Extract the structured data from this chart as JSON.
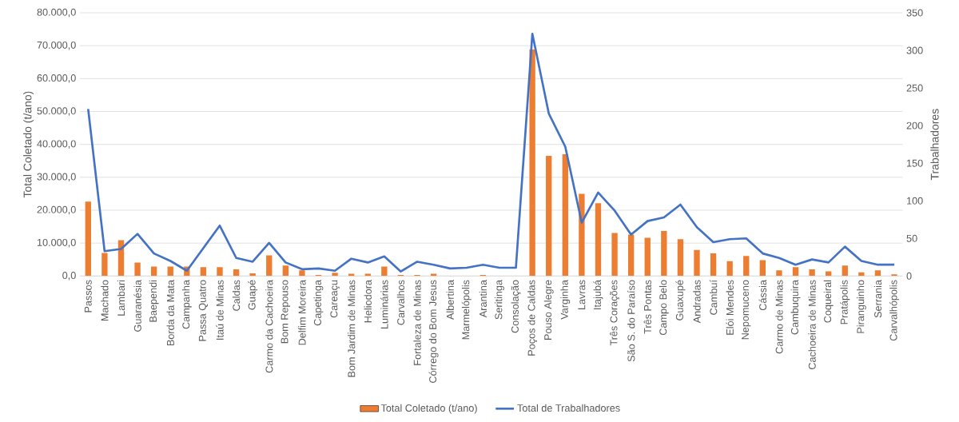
{
  "chart_data": {
    "type": "bar",
    "ylabel": "Total Coletado (t/ano)",
    "y2label": "Trabalhadores",
    "categories": [
      "Passos",
      "Machado",
      "Lambari",
      "Guaranésia",
      "Baependi",
      "Borda da Mata",
      "Campanha",
      "Passa Quatro",
      "Itaú de Minas",
      "Caldas",
      "Guapé",
      "Carmo da Cachoeira",
      "Bom Repouso",
      "Delfim Moreira",
      "Capetinga",
      "Careaçu",
      "Bom Jardim de Minas",
      "Heliodora",
      "Luminárias",
      "Carvalhos",
      "Fortaleza de Minas",
      "Córrego do Bom Jesus",
      "Albertina",
      "Marmelópolis",
      "Arantina",
      "Seritinga",
      "Consolação",
      "Poços de Caldas",
      "Pouso Alegre",
      "Varginha",
      "Lavras",
      "Itajubá",
      "Três Corações",
      "São S. do Paraíso",
      "Três Pontas",
      "Campo Belo",
      "Guaxupé",
      "Andradas",
      "Cambuí",
      "Elói Mendes",
      "Nepomuceno",
      "Cássia",
      "Carmo de Minas",
      "Cambuquira",
      "Cachoeira de Minas",
      "Coqueiral",
      "Pratápolis",
      "Piranguinho",
      "Serrania",
      "Carvalhópolis"
    ],
    "series": [
      {
        "name": "Total Coletado (t/ano)",
        "color": "#ed7d31",
        "values": [
          22600,
          7000,
          10900,
          4100,
          2900,
          2900,
          2900,
          2700,
          2700,
          2000,
          800,
          6300,
          3200,
          1700,
          300,
          1000,
          700,
          700,
          2900,
          300,
          300,
          700,
          0,
          0,
          300,
          0,
          0,
          68900,
          36500,
          37000,
          25000,
          22100,
          13100,
          12600,
          11600,
          13700,
          11200,
          7900,
          6900,
          4500,
          6100,
          4800,
          1700,
          2700,
          2000,
          1400,
          3200,
          1100,
          1700,
          500
        ]
      },
      {
        "name": "Total de Trabalhadores",
        "type": "line",
        "axis": "y2",
        "color": "#4472c4",
        "values": [
          222,
          33,
          36,
          56,
          30,
          20,
          7,
          37,
          67,
          24,
          19,
          44,
          18,
          9,
          10,
          7,
          23,
          18,
          26,
          6,
          19,
          15,
          10,
          11,
          15,
          11,
          11,
          322,
          216,
          172,
          71,
          111,
          87,
          55,
          73,
          78,
          95,
          65,
          45,
          49,
          50,
          30,
          24,
          15,
          22,
          18,
          39,
          20,
          15,
          15
        ]
      }
    ],
    "ylim": [
      0,
      80000
    ],
    "yticks": [
      {
        "value": 0,
        "label": "0,0"
      },
      {
        "value": 10000,
        "label": "10.000,0"
      },
      {
        "value": 20000,
        "label": "20.000,0"
      },
      {
        "value": 30000,
        "label": "30.000,0"
      },
      {
        "value": 40000,
        "label": "40.000,0"
      },
      {
        "value": 50000,
        "label": "50.000,0"
      },
      {
        "value": 60000,
        "label": "60.000,0"
      },
      {
        "value": 70000,
        "label": "70.000,0"
      },
      {
        "value": 80000,
        "label": "80.000,0"
      }
    ],
    "y2lim": [
      0,
      350
    ],
    "y2ticks": [
      0,
      50,
      100,
      150,
      200,
      250,
      300,
      350
    ],
    "grid": "y",
    "legend": "bottom"
  }
}
